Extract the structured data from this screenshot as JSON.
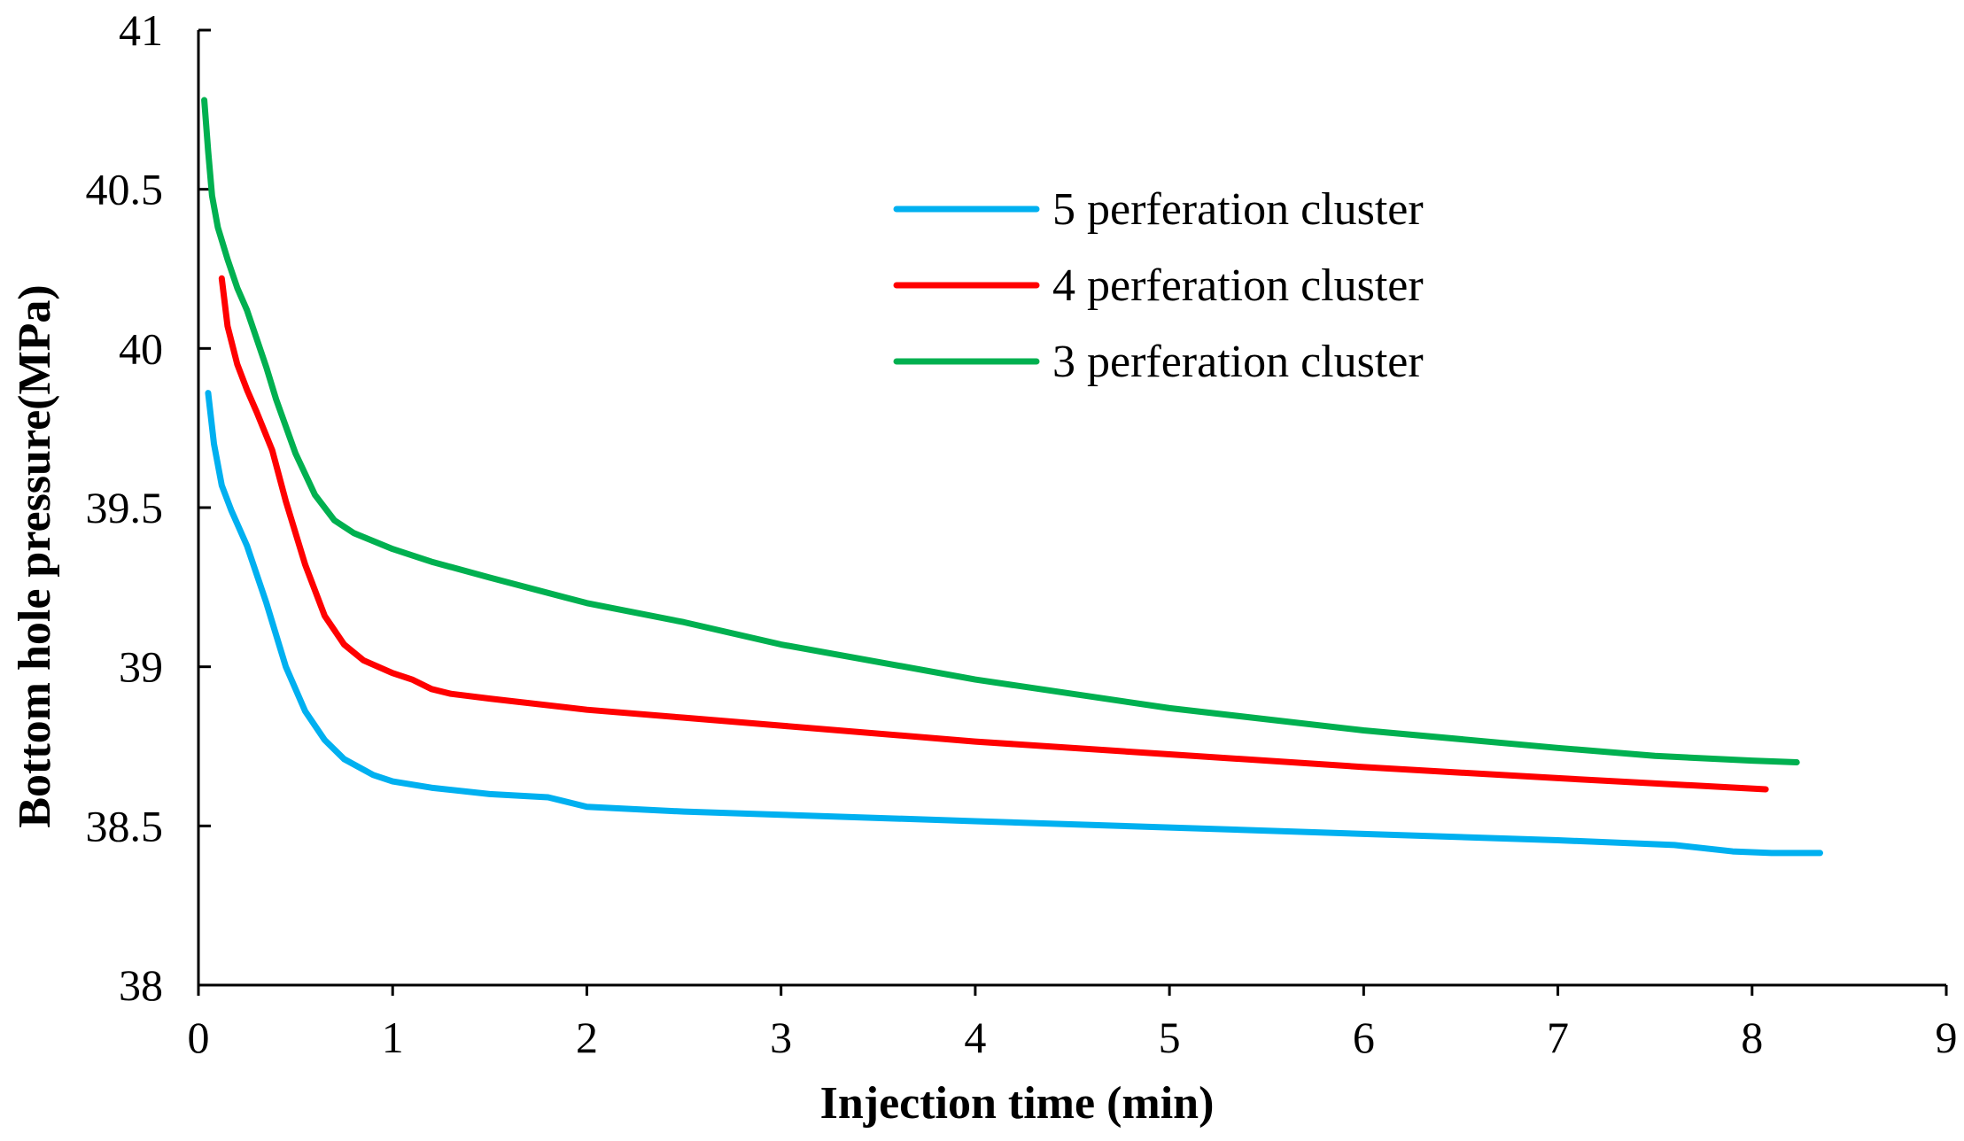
{
  "chart_data": {
    "type": "line",
    "title": "",
    "xlabel": "Injection time (min)",
    "ylabel": "Bottom hole pressure(MPa)",
    "xlim": [
      0,
      9
    ],
    "ylim": [
      38,
      41
    ],
    "xticks": [
      0,
      1,
      2,
      3,
      4,
      5,
      6,
      7,
      8,
      9
    ],
    "yticks": [
      38,
      38.5,
      39,
      39.5,
      40,
      40.5,
      41
    ],
    "ytick_labels": [
      "38",
      "38.5",
      "39",
      "39.5",
      "40",
      "40.5",
      "41"
    ],
    "grid": false,
    "legend_position": "top-right",
    "series": [
      {
        "name": "5 perferation cluster",
        "color": "#00B0F0",
        "x": [
          0.05,
          0.08,
          0.12,
          0.17,
          0.25,
          0.35,
          0.45,
          0.55,
          0.65,
          0.75,
          0.9,
          1.0,
          1.2,
          1.5,
          1.8,
          2.0,
          2.5,
          3.0,
          4.0,
          5.0,
          6.0,
          7.0,
          7.6,
          7.9,
          8.1,
          8.35
        ],
        "y": [
          39.86,
          39.7,
          39.57,
          39.49,
          39.38,
          39.2,
          39.0,
          38.86,
          38.77,
          38.71,
          38.66,
          38.64,
          38.62,
          38.6,
          38.59,
          38.56,
          38.545,
          38.535,
          38.515,
          38.495,
          38.475,
          38.455,
          38.44,
          38.42,
          38.415,
          38.415
        ]
      },
      {
        "name": "4 perferation cluster",
        "color": "#FF0000",
        "x": [
          0.12,
          0.15,
          0.2,
          0.25,
          0.3,
          0.38,
          0.45,
          0.55,
          0.65,
          0.75,
          0.85,
          1.0,
          1.1,
          1.2,
          1.3,
          1.5,
          2.0,
          2.5,
          3.0,
          4.0,
          5.0,
          6.0,
          7.0,
          8.07
        ],
        "y": [
          40.22,
          40.07,
          39.95,
          39.87,
          39.8,
          39.68,
          39.52,
          39.32,
          39.16,
          39.07,
          39.02,
          38.98,
          38.96,
          38.93,
          38.915,
          38.9,
          38.865,
          38.84,
          38.815,
          38.765,
          38.725,
          38.685,
          38.65,
          38.615
        ]
      },
      {
        "name": "3 perferation cluster",
        "color": "#00B050",
        "x": [
          0.03,
          0.05,
          0.07,
          0.1,
          0.15,
          0.2,
          0.25,
          0.3,
          0.35,
          0.4,
          0.5,
          0.6,
          0.7,
          0.8,
          1.0,
          1.2,
          1.5,
          2.0,
          2.5,
          3.0,
          4.0,
          5.0,
          6.0,
          7.0,
          7.5,
          8.0,
          8.23
        ],
        "y": [
          40.78,
          40.62,
          40.48,
          40.38,
          40.28,
          40.19,
          40.12,
          40.03,
          39.94,
          39.84,
          39.67,
          39.54,
          39.46,
          39.42,
          39.37,
          39.33,
          39.28,
          39.2,
          39.14,
          39.07,
          38.96,
          38.87,
          38.8,
          38.745,
          38.72,
          38.705,
          38.7
        ]
      }
    ]
  }
}
